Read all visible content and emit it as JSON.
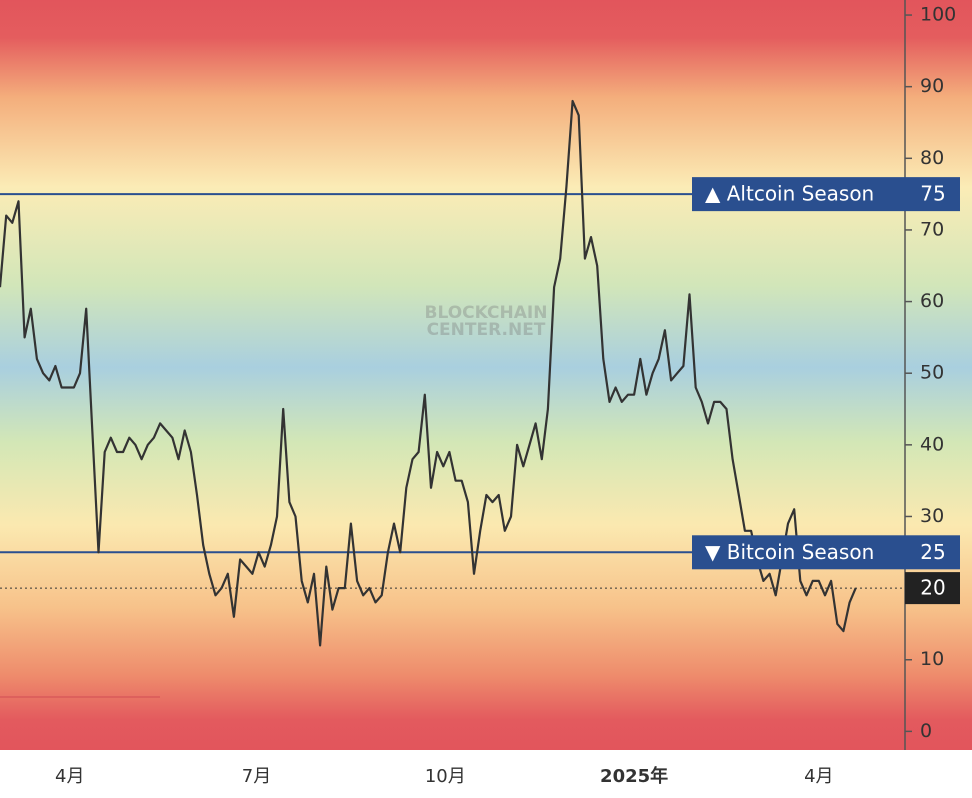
{
  "chart_data": {
    "type": "line",
    "x": [
      -34,
      -31,
      -28,
      -25,
      -22,
      -19,
      -16,
      -13,
      -10,
      -7,
      -4,
      -1,
      2,
      5,
      8,
      11,
      14,
      17,
      20,
      23,
      26,
      29,
      32,
      35,
      38,
      41,
      44,
      47,
      50,
      53,
      56,
      59,
      62,
      65,
      68,
      71,
      74,
      77,
      80,
      83,
      86,
      89,
      92,
      95,
      98,
      101,
      104,
      107,
      110,
      113,
      116,
      119,
      122,
      125,
      128,
      131,
      134,
      137,
      140,
      143,
      146,
      149,
      152,
      155,
      158,
      161,
      164,
      167,
      170,
      173,
      176,
      179,
      182,
      185,
      188,
      191,
      194,
      197,
      200,
      203,
      206,
      209,
      212,
      215,
      218,
      221,
      224,
      227,
      230,
      233,
      236,
      239,
      242,
      245,
      248,
      251,
      254,
      257,
      260,
      263,
      266,
      269,
      272,
      275,
      278,
      281,
      284,
      287,
      290,
      293,
      296,
      299,
      302,
      305,
      308,
      311,
      314,
      317,
      320,
      323,
      326,
      329,
      332,
      335,
      338,
      341,
      344,
      347,
      350,
      353,
      356,
      359,
      362,
      365,
      368,
      371,
      374,
      377,
      380,
      383
    ],
    "series": [
      {
        "color": "#333333",
        "values": [
          62,
          72,
          71,
          74,
          55,
          59,
          52,
          50,
          49,
          51,
          48,
          48,
          48,
          50,
          59,
          42,
          25,
          39,
          41,
          39,
          39,
          41,
          40,
          38,
          40,
          41,
          43,
          42,
          41,
          38,
          42,
          39,
          33,
          26,
          22,
          19,
          20,
          22,
          16,
          24,
          23,
          22,
          25,
          23,
          26,
          30,
          45,
          32,
          30,
          21,
          18,
          22,
          12,
          23,
          17,
          20,
          20,
          29,
          21,
          19,
          20,
          18,
          19,
          25,
          29,
          25,
          34,
          38,
          39,
          47,
          34,
          39,
          37,
          39,
          35,
          35,
          32,
          22,
          28,
          33,
          32,
          33,
          28,
          30,
          40,
          37,
          40,
          43,
          38,
          45,
          62,
          66,
          76,
          88,
          86,
          66,
          69,
          65,
          52,
          46,
          48,
          46,
          47,
          47,
          52,
          47,
          50,
          52,
          56,
          49,
          50,
          51,
          61,
          48,
          46,
          43,
          46,
          46,
          45,
          38,
          33,
          28,
          28,
          24,
          21,
          22,
          19,
          24,
          29,
          31,
          21,
          19,
          21,
          21,
          19,
          21,
          15,
          14,
          18,
          20
        ]
      }
    ],
    "xlim": [
      -34,
      407
    ],
    "xticks": [
      {
        "value": 0,
        "label": "4月"
      },
      {
        "value": 91,
        "label": "7月"
      },
      {
        "value": 183,
        "label": "10月"
      },
      {
        "value": 275,
        "label": "2025年"
      },
      {
        "value": 365,
        "label": "4月"
      }
    ],
    "ylim": [
      -2.6,
      102.1
    ],
    "yticks": [
      0,
      10,
      20,
      30,
      40,
      50,
      60,
      70,
      80,
      90,
      100
    ],
    "levels": [
      {
        "value": 75,
        "label": "▲ Altcoin Season"
      },
      {
        "value": 25,
        "label": "▼ Bitcoin Season"
      }
    ],
    "level_color": "#2a4f8f",
    "watermark": [
      "BLOCKCHAIN",
      "CENTER.NET"
    ]
  }
}
